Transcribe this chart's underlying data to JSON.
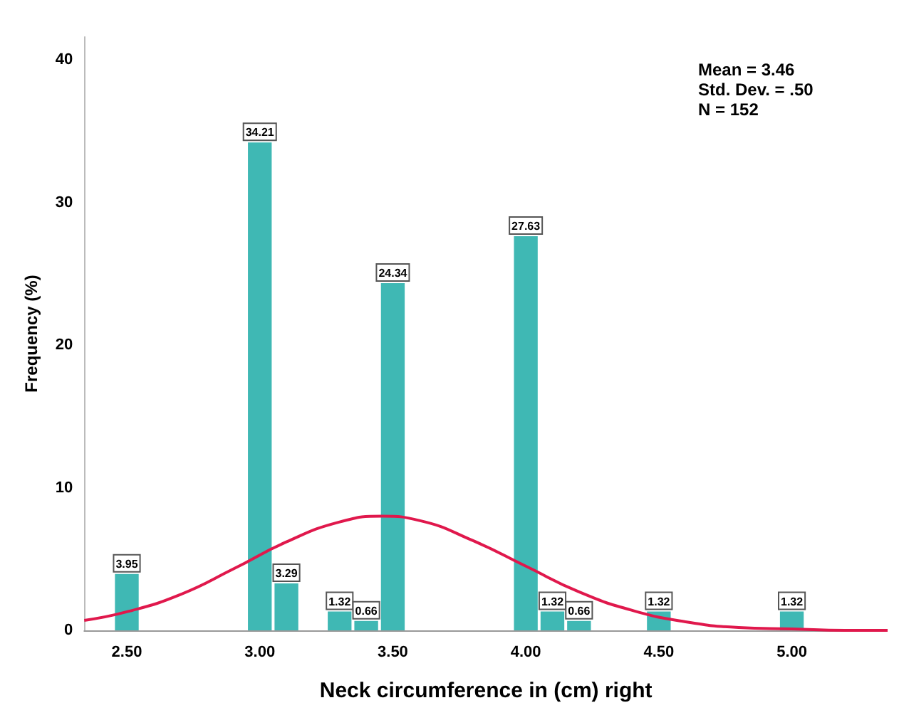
{
  "chart_data": {
    "type": "histogram",
    "xlabel": "Neck circumference in (cm) right",
    "ylabel": "Frequency (%)",
    "bins": [
      2.45,
      2.55,
      2.65,
      2.75,
      2.85,
      2.95,
      3.05,
      3.15,
      3.25,
      3.35,
      3.45,
      3.55,
      3.65,
      3.75,
      3.85,
      3.95,
      4.05,
      4.15,
      4.25,
      4.35,
      4.45,
      4.55,
      4.65,
      4.75,
      4.85,
      4.95,
      5.05
    ],
    "values": [
      3.95,
      0,
      0,
      0,
      0,
      34.21,
      3.29,
      0,
      1.32,
      0.66,
      24.34,
      0,
      0,
      0,
      0,
      27.63,
      1.32,
      0.66,
      0,
      0,
      1.32,
      0,
      0,
      0,
      0,
      1.32
    ],
    "value_labels": [
      "3.95",
      null,
      null,
      null,
      null,
      "34.21",
      "3.29",
      null,
      "1.32",
      "0.66",
      "24.34",
      null,
      null,
      null,
      null,
      "27.63",
      "1.32",
      "0.66",
      null,
      null,
      "1.32",
      null,
      null,
      null,
      null,
      "1.32"
    ],
    "color": "#3fb8b4",
    "series": [
      {
        "type": "line",
        "color": "#e0184c",
        "x": [
          2.34,
          2.5,
          2.7,
          2.9,
          3.1,
          3.3,
          3.46,
          3.6,
          3.8,
          4.0,
          4.2,
          4.4,
          4.6,
          4.8,
          5.0,
          5.2,
          5.36
        ],
        "values": [
          0.7,
          1.3,
          2.5,
          4.3,
          6.2,
          7.6,
          8.0,
          7.7,
          6.3,
          4.5,
          2.7,
          1.4,
          0.6,
          0.2,
          0.1,
          0.0,
          0.0
        ]
      }
    ],
    "marker": "none",
    "line_style": "solid",
    "xlim": [
      2.34,
      5.36
    ],
    "xticks": [
      {
        "value": 2.5,
        "label": "2.50"
      },
      {
        "value": 3.0,
        "label": "3.00"
      },
      {
        "value": 3.5,
        "label": "3.50"
      },
      {
        "value": 4.0,
        "label": "4.00"
      },
      {
        "value": 4.5,
        "label": "4.50"
      },
      {
        "value": 5.0,
        "label": "5.00"
      }
    ],
    "ylim": [
      0,
      41.6
    ],
    "yticks": [
      0,
      10,
      20,
      30,
      40
    ],
    "grid": false,
    "annotations": [
      "Mean = 3.46",
      "Std. Dev. = .50",
      "N = 152"
    ]
  }
}
